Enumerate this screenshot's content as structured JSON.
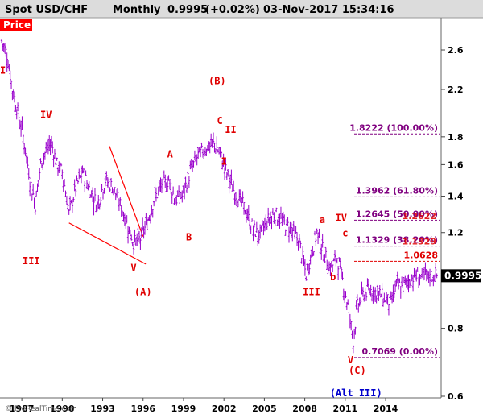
{
  "header": {
    "symbol": "Spot USD/CHF",
    "period": "Monthly",
    "last_price": "0.9995",
    "change": "(+0.02%)",
    "datetime": "03-Nov-2017 15:34:16"
  },
  "price_tag": "Price",
  "watermark": "© ProRealTime.com",
  "colors": {
    "candles": "#9900cc",
    "labels": "#e00000",
    "alt_label": "#0000cc",
    "trendline": "#ff0000",
    "fib": "#800080",
    "price_tag_bg": "#ff0000"
  },
  "chart_data": {
    "type": "candlestick",
    "x_axis": {
      "ticks": [
        "1987",
        "1990",
        "1993",
        "1996",
        "1999",
        "2002",
        "2005",
        "2008",
        "2011",
        "2014"
      ],
      "range": [
        1985.5,
        2018.0
      ]
    },
    "y_axis": {
      "scale": "log",
      "ticks": [
        "2.6",
        "2.2",
        "1.8",
        "1.6",
        "1.4",
        "1.2",
        "0.8",
        "0.6"
      ],
      "range": [
        0.6,
        2.9
      ]
    },
    "series": [
      {
        "values": [
          [
            1985.5,
            2.7
          ],
          [
            1985.9,
            2.55
          ],
          [
            1986.3,
            2.2
          ],
          [
            1986.7,
            2.0
          ],
          [
            1987.1,
            1.8
          ],
          [
            1987.6,
            1.5
          ],
          [
            1988.0,
            1.35
          ],
          [
            1988.4,
            1.6
          ],
          [
            1988.8,
            1.7
          ],
          [
            1989.2,
            1.75
          ],
          [
            1989.6,
            1.6
          ],
          [
            1990.0,
            1.55
          ],
          [
            1990.5,
            1.3
          ],
          [
            1991.0,
            1.45
          ],
          [
            1991.5,
            1.55
          ],
          [
            1992.0,
            1.45
          ],
          [
            1992.6,
            1.35
          ],
          [
            1993.2,
            1.5
          ],
          [
            1993.8,
            1.45
          ],
          [
            1994.3,
            1.35
          ],
          [
            1994.8,
            1.25
          ],
          [
            1995.3,
            1.15
          ],
          [
            1995.8,
            1.17
          ],
          [
            1996.3,
            1.25
          ],
          [
            1996.8,
            1.38
          ],
          [
            1997.3,
            1.45
          ],
          [
            1997.9,
            1.5
          ],
          [
            1998.4,
            1.38
          ],
          [
            1998.9,
            1.4
          ],
          [
            1999.5,
            1.55
          ],
          [
            2000.0,
            1.65
          ],
          [
            2000.7,
            1.72
          ],
          [
            2001.3,
            1.75
          ],
          [
            2001.8,
            1.65
          ],
          [
            2002.3,
            1.52
          ],
          [
            2002.8,
            1.42
          ],
          [
            2003.4,
            1.35
          ],
          [
            2004.0,
            1.24
          ],
          [
            2004.6,
            1.18
          ],
          [
            2005.2,
            1.26
          ],
          [
            2005.8,
            1.3
          ],
          [
            2006.4,
            1.25
          ],
          [
            2007.0,
            1.22
          ],
          [
            2007.6,
            1.15
          ],
          [
            2008.1,
            1.0
          ],
          [
            2008.5,
            1.1
          ],
          [
            2008.9,
            1.2
          ],
          [
            2009.4,
            1.1
          ],
          [
            2009.9,
            1.03
          ],
          [
            2010.4,
            1.08
          ],
          [
            2010.8,
            0.98
          ],
          [
            2011.2,
            0.88
          ],
          [
            2011.6,
            0.76
          ],
          [
            2011.9,
            0.88
          ],
          [
            2012.4,
            0.93
          ],
          [
            2012.9,
            0.94
          ],
          [
            2013.4,
            0.93
          ],
          [
            2013.9,
            0.91
          ],
          [
            2014.4,
            0.89
          ],
          [
            2014.8,
            0.96
          ],
          [
            2015.2,
            0.95
          ],
          [
            2015.7,
            0.98
          ],
          [
            2016.2,
            1.0
          ],
          [
            2016.7,
            0.99
          ],
          [
            2017.2,
            1.0
          ],
          [
            2017.8,
            0.9995
          ]
        ],
        "color": "#9900cc"
      }
    ],
    "wave_labels": [
      {
        "text": "I",
        "x": 1985.6,
        "y": 2.35,
        "color": "red"
      },
      {
        "text": "III",
        "x": 1987.7,
        "y": 1.05,
        "color": "red"
      },
      {
        "text": "IV",
        "x": 1988.8,
        "y": 1.95,
        "color": "red"
      },
      {
        "text": "V",
        "x": 1995.3,
        "y": 1.02,
        "color": "red"
      },
      {
        "text": "(A)",
        "x": 1996.0,
        "y": 0.92,
        "color": "red"
      },
      {
        "text": "A",
        "x": 1998.0,
        "y": 1.65,
        "color": "red"
      },
      {
        "text": "B",
        "x": 1999.4,
        "y": 1.16,
        "color": "red"
      },
      {
        "text": "(B)",
        "x": 2001.5,
        "y": 2.25,
        "color": "red"
      },
      {
        "text": "C",
        "x": 2001.7,
        "y": 1.9,
        "color": "red"
      },
      {
        "text": "II",
        "x": 2002.5,
        "y": 1.83,
        "color": "red"
      },
      {
        "text": "I",
        "x": 2002.0,
        "y": 1.6,
        "color": "red"
      },
      {
        "text": "a",
        "x": 2009.3,
        "y": 1.25,
        "color": "red"
      },
      {
        "text": "IV",
        "x": 2010.7,
        "y": 1.26,
        "color": "red"
      },
      {
        "text": "c",
        "x": 2011.0,
        "y": 1.18,
        "color": "red"
      },
      {
        "text": "III",
        "x": 2008.5,
        "y": 0.92,
        "color": "red"
      },
      {
        "text": "b",
        "x": 2010.1,
        "y": 0.98,
        "color": "red"
      },
      {
        "text": "V",
        "x": 2011.4,
        "y": 0.69,
        "color": "red"
      },
      {
        "text": "(C)",
        "x": 2011.9,
        "y": 0.66,
        "color": "red"
      },
      {
        "text": "(Alt III)",
        "x": 2011.8,
        "y": 0.6,
        "color": "blue"
      }
    ],
    "trendlines": [
      {
        "x": [
          1993.5,
          1996.0
        ],
        "y": [
          1.73,
          1.18
        ]
      },
      {
        "x": [
          1990.5,
          1996.2
        ],
        "y": [
          1.25,
          1.05
        ]
      }
    ],
    "fib_levels": [
      {
        "label": "1.8222 (100.00%)",
        "value": 1.8222,
        "color": "#800080"
      },
      {
        "label": "1.3962 (61.80%)",
        "value": 1.3962,
        "color": "#800080"
      },
      {
        "label": "1.2645 (50.00%)",
        "value": 1.2645,
        "color": "#800080"
      },
      {
        "label": "1.1329 (38.20%)",
        "value": 1.1329,
        "color": "#800080"
      },
      {
        "label": "1.0628",
        "value": 1.0628,
        "color": "#e00000"
      },
      {
        "label": "0.7069 (0.00%)",
        "value": 0.7069,
        "color": "#800080"
      }
    ],
    "overlap_labels": [
      {
        "text": "1.2622",
        "value": 1.2622,
        "color": "#e00000"
      },
      {
        "text": "1.1329",
        "value": 1.1329,
        "color": "#e00000"
      }
    ],
    "last_value_tag": "0.9995"
  }
}
